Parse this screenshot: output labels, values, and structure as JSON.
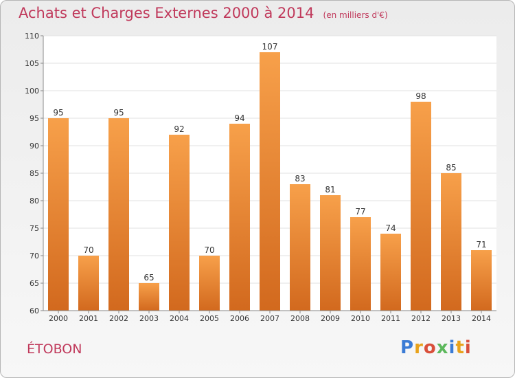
{
  "header": {
    "title": "Achats et Charges Externes 2000 à 2014",
    "subtitle": "(en milliers d'€)"
  },
  "footer": {
    "commune": "ÉTOBON",
    "logo_text": "Proxiti"
  },
  "chart_data": {
    "type": "bar",
    "title": "Achats et Charges Externes 2000 à 2014",
    "subtitle": "(en milliers d'€)",
    "xlabel": "",
    "ylabel": "",
    "categories": [
      "2000",
      "2001",
      "2002",
      "2003",
      "2004",
      "2005",
      "2006",
      "2007",
      "2008",
      "2009",
      "2010",
      "2011",
      "2012",
      "2013",
      "2014"
    ],
    "values": [
      95,
      70,
      95,
      65,
      92,
      70,
      94,
      107,
      83,
      81,
      77,
      74,
      98,
      85,
      71
    ],
    "ylim": [
      60,
      110
    ],
    "yticks": [
      60,
      65,
      70,
      75,
      80,
      85,
      90,
      95,
      100,
      105,
      110
    ],
    "grid": true,
    "colors": {
      "bar_top": "#f7a04a",
      "bar_bottom": "#d2691e",
      "grid": "#e2e2e2",
      "axis": "#888888",
      "title": "#c0395b"
    }
  }
}
